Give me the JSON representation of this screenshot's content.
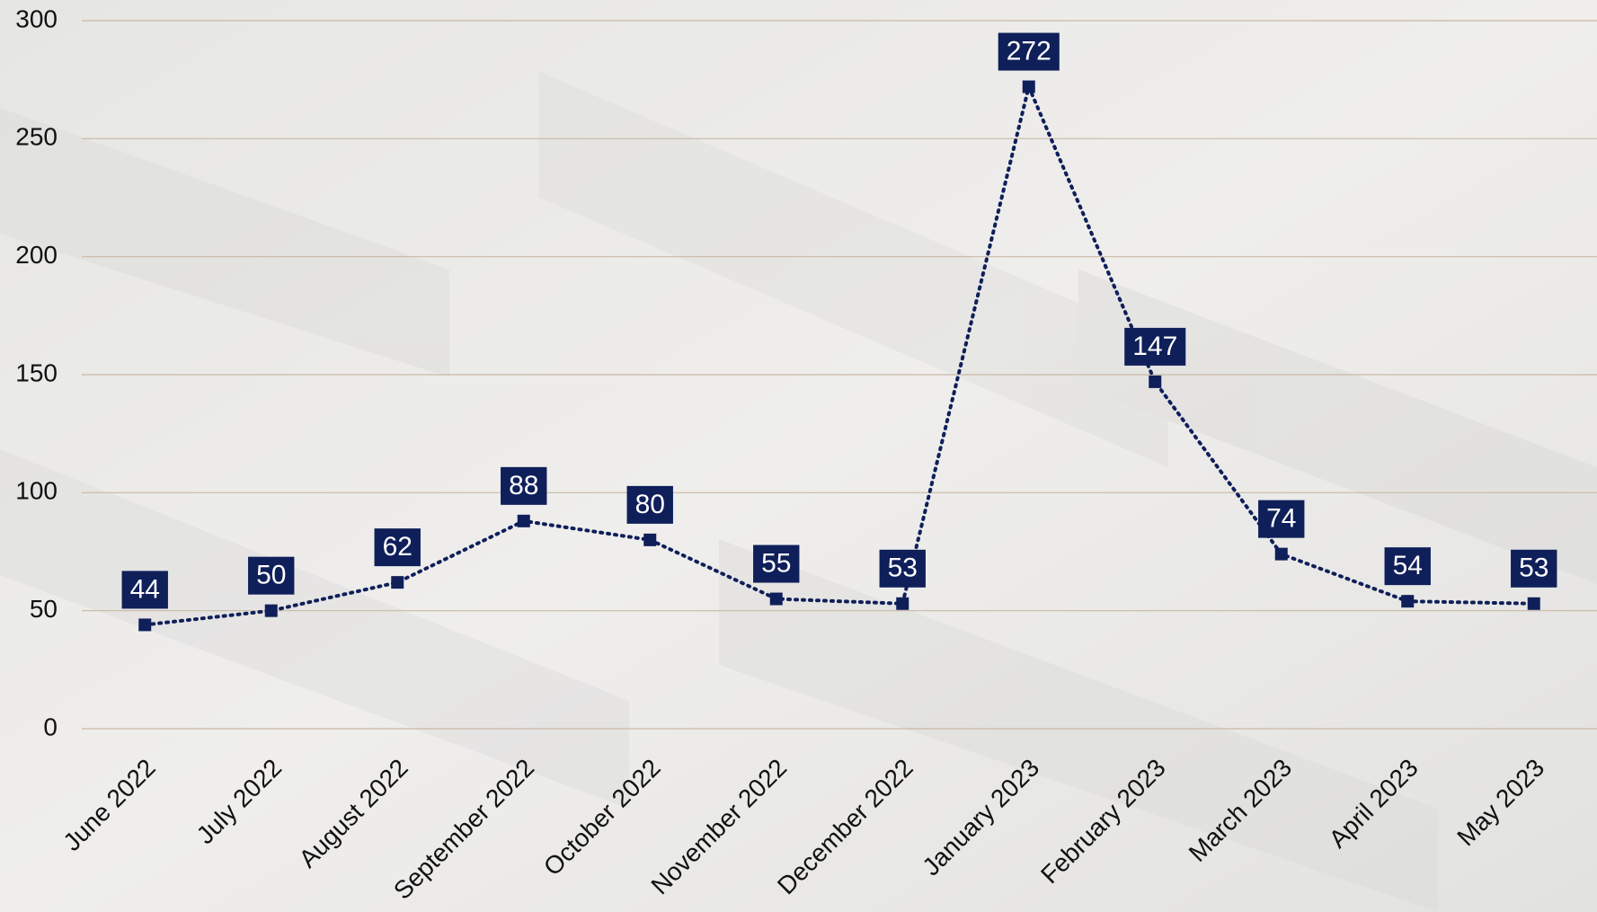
{
  "chart_data": {
    "type": "line",
    "categories": [
      "June 2022",
      "July 2022",
      "August 2022",
      "September 2022",
      "October 2022",
      "November 2022",
      "December 2022",
      "January 2023",
      "February 2023",
      "March 2023",
      "April 2023",
      "May 2023"
    ],
    "values": [
      44,
      50,
      62,
      88,
      80,
      55,
      53,
      272,
      147,
      74,
      54,
      53
    ],
    "color": "#0f1f5a",
    "ylim": [
      0,
      300
    ],
    "yticks": [
      0,
      50,
      100,
      150,
      200,
      250,
      300
    ],
    "grid": true
  }
}
